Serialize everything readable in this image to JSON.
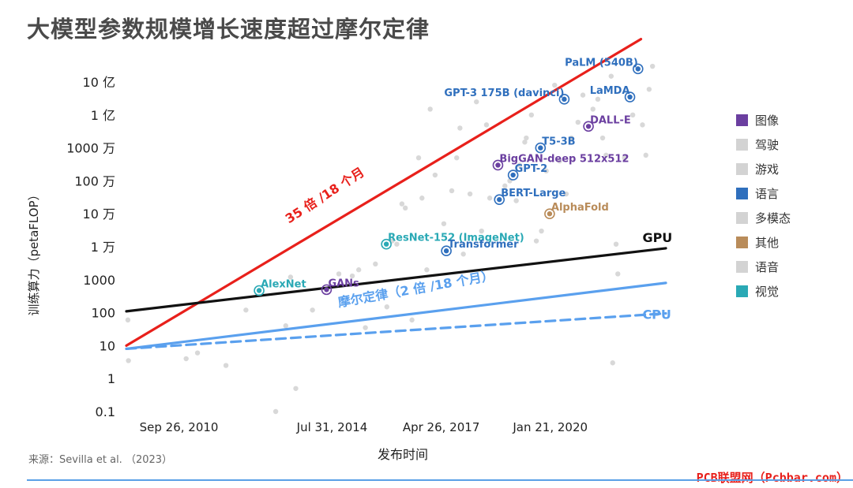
{
  "title": "大模型参数规模增长速度超过摩尔定律",
  "source": "来源：Sevilla et al. （2023）",
  "watermark": "PCB联盟网（Pcbbar.com）",
  "chart_data": {
    "type": "scatter",
    "y_scale": "log10",
    "xlabel": "发布时间",
    "ylabel": "训练算力（petaFLOP）",
    "x_range": [
      "2009-06-01",
      "2022-12-15"
    ],
    "ylim": [
      0.1,
      100000000000
    ],
    "x_ticks": [
      {
        "date": "2010-09-26",
        "label": "Sep 26, 2010"
      },
      {
        "date": "2014-07-31",
        "label": "Jul 31, 2014"
      },
      {
        "date": "2017-04-26",
        "label": "Apr 26, 2017"
      },
      {
        "date": "2020-01-21",
        "label": "Jan 21, 2020"
      }
    ],
    "y_ticks": [
      {
        "value": 0.1,
        "label": "0.1"
      },
      {
        "value": 1,
        "label": "1"
      },
      {
        "value": 10,
        "label": "10"
      },
      {
        "value": 100,
        "label": "100"
      },
      {
        "value": 1000,
        "label": "1000"
      },
      {
        "value": 10000,
        "label": "1 万"
      },
      {
        "value": 100000,
        "label": "10 万"
      },
      {
        "value": 1000000,
        "label": "100 万"
      },
      {
        "value": 10000000,
        "label": "1000 万"
      },
      {
        "value": 100000000,
        "label": "1 亿"
      },
      {
        "value": 1000000000,
        "label": "10 亿"
      }
    ],
    "legend": [
      {
        "name": "图像",
        "color": "#6b3fa0"
      },
      {
        "name": "驾驶",
        "color": "#d3d3d3"
      },
      {
        "name": "游戏",
        "color": "#d3d3d3"
      },
      {
        "name": "语言",
        "color": "#2f6fbd"
      },
      {
        "name": "多模态",
        "color": "#d3d3d3"
      },
      {
        "name": "其他",
        "color": "#b98c5a"
      },
      {
        "name": "语音",
        "color": "#d3d3d3"
      },
      {
        "name": "视觉",
        "color": "#2aa9b5"
      }
    ],
    "legend_position": "right",
    "trend_lines": [
      {
        "name": "35 倍 /18 个月",
        "color": "#e8201b",
        "style": "solid",
        "from": {
          "date": "2009-06-01",
          "value": 10
        },
        "to": {
          "date": "2022-05-01",
          "value": 20000000000
        }
      },
      {
        "name": "GPU",
        "color": "#111111",
        "style": "solid",
        "from": {
          "date": "2009-06-01",
          "value": 110
        },
        "to": {
          "date": "2022-12-15",
          "value": 9000
        }
      },
      {
        "name": "摩尔定律（2 倍 /18 个月）",
        "color": "#5aa0ee",
        "style": "solid",
        "from": {
          "date": "2009-06-01",
          "value": 8
        },
        "to": {
          "date": "2022-12-15",
          "value": 800
        }
      },
      {
        "name": "CPU",
        "color": "#5aa0ee",
        "style": "dashed",
        "from": {
          "date": "2009-06-01",
          "value": 8
        },
        "to": {
          "date": "2022-12-15",
          "value": 95
        }
      }
    ],
    "line_labels": [
      {
        "text": "35 倍 /18 个月",
        "color": "#e8201b",
        "date": "2013-07-01",
        "value": 50000,
        "rotate": -33
      },
      {
        "text": "GPU",
        "color": "#111111",
        "date": "2022-05-15",
        "value": 14000,
        "rotate": 0
      },
      {
        "text": "摩尔定律（2 倍 /18 个月）",
        "color": "#5aa0ee",
        "date": "2014-10-01",
        "value": 150,
        "rotate": -10
      },
      {
        "text": "CPU",
        "color": "#5aa0ee",
        "date": "2022-05-15",
        "value": 65,
        "rotate": 0
      }
    ],
    "highlights": [
      {
        "name": "AlexNet",
        "date": "2012-09-30",
        "value": 470,
        "category": "视觉",
        "color": "#2aa9b5"
      },
      {
        "name": "GANs",
        "date": "2014-06-10",
        "value": 500,
        "category": "图像",
        "color": "#6b3fa0"
      },
      {
        "name": "ResNet-152 (ImageNet)",
        "date": "2015-12-10",
        "value": 12000,
        "category": "视觉",
        "color": "#2aa9b5"
      },
      {
        "name": "Transformer",
        "date": "2017-06-12",
        "value": 7500,
        "category": "语言",
        "color": "#2f6fbd"
      },
      {
        "name": "BERT-Large",
        "date": "2018-10-11",
        "value": 270000,
        "category": "语言",
        "color": "#2f6fbd"
      },
      {
        "name": "BigGAN-deep 512x512",
        "date": "2018-09-28",
        "value": 3000000,
        "category": "图像",
        "color": "#6b3fa0"
      },
      {
        "name": "GPT-2",
        "date": "2019-02-14",
        "value": 1500000,
        "category": "语言",
        "color": "#2f6fbd"
      },
      {
        "name": "T5-3B",
        "date": "2019-10-23",
        "value": 10000000,
        "category": "语言",
        "color": "#2f6fbd"
      },
      {
        "name": "AlphaFold",
        "date": "2020-01-15",
        "value": 100000,
        "category": "其他",
        "color": "#b98c5a"
      },
      {
        "name": "GPT-3 175B (davinci)",
        "date": "2020-05-28",
        "value": 300000000,
        "category": "语言",
        "color": "#2f6fbd"
      },
      {
        "name": "DALL-E",
        "date": "2021-01-05",
        "value": 45000000,
        "category": "图像",
        "color": "#6b3fa0"
      },
      {
        "name": "LaMDA",
        "date": "2022-01-20",
        "value": 350000000,
        "category": "语言",
        "color": "#2f6fbd"
      },
      {
        "name": "PaLM (540B)",
        "date": "2022-04-04",
        "value": 2500000000,
        "category": "语言",
        "color": "#2f6fbd"
      }
    ],
    "background_points": [
      {
        "date": "2009-06-15",
        "value": 60
      },
      {
        "date": "2009-06-20",
        "value": 3.5
      },
      {
        "date": "2010-12-01",
        "value": 4
      },
      {
        "date": "2011-03-15",
        "value": 6
      },
      {
        "date": "2011-12-01",
        "value": 2.5
      },
      {
        "date": "2012-06-01",
        "value": 120
      },
      {
        "date": "2013-03-01",
        "value": 0.1
      },
      {
        "date": "2013-06-01",
        "value": 40
      },
      {
        "date": "2013-07-15",
        "value": 1200
      },
      {
        "date": "2013-09-01",
        "value": 0.5
      },
      {
        "date": "2014-02-01",
        "value": 120
      },
      {
        "date": "2014-10-01",
        "value": 1500
      },
      {
        "date": "2015-02-01",
        "value": 1300
      },
      {
        "date": "2015-04-01",
        "value": 2000
      },
      {
        "date": "2015-06-01",
        "value": 35
      },
      {
        "date": "2015-09-01",
        "value": 3000
      },
      {
        "date": "2015-12-15",
        "value": 150
      },
      {
        "date": "2016-02-01",
        "value": 15000
      },
      {
        "date": "2016-03-15",
        "value": 12000
      },
      {
        "date": "2016-05-01",
        "value": 200000
      },
      {
        "date": "2016-06-01",
        "value": 150000
      },
      {
        "date": "2016-08-01",
        "value": 60
      },
      {
        "date": "2016-10-01",
        "value": 5000000
      },
      {
        "date": "2016-11-01",
        "value": 300000
      },
      {
        "date": "2016-12-15",
        "value": 2000
      },
      {
        "date": "2017-01-15",
        "value": 150000000
      },
      {
        "date": "2017-03-01",
        "value": 1500000
      },
      {
        "date": "2017-05-20",
        "value": 50000
      },
      {
        "date": "2017-08-01",
        "value": 500000
      },
      {
        "date": "2017-09-15",
        "value": 5000000
      },
      {
        "date": "2017-10-15",
        "value": 40000000
      },
      {
        "date": "2017-11-15",
        "value": 6000
      },
      {
        "date": "2018-01-15",
        "value": 400000
      },
      {
        "date": "2018-03-15",
        "value": 250000000
      },
      {
        "date": "2018-05-01",
        "value": 30000
      },
      {
        "date": "2018-06-15",
        "value": 50000000
      },
      {
        "date": "2018-07-15",
        "value": 300000
      },
      {
        "date": "2018-12-01",
        "value": 700000
      },
      {
        "date": "2019-01-15",
        "value": 1000000
      },
      {
        "date": "2019-03-15",
        "value": 250000
      },
      {
        "date": "2019-04-15",
        "value": 3000000
      },
      {
        "date": "2019-06-01",
        "value": 15000000
      },
      {
        "date": "2019-06-15",
        "value": 20000000
      },
      {
        "date": "2019-08-01",
        "value": 100000000
      },
      {
        "date": "2019-09-15",
        "value": 15000
      },
      {
        "date": "2019-11-01",
        "value": 30000
      },
      {
        "date": "2019-12-15",
        "value": 2000000
      },
      {
        "date": "2020-03-01",
        "value": 800000000
      },
      {
        "date": "2020-04-15",
        "value": 4000000
      },
      {
        "date": "2020-06-15",
        "value": 400000
      },
      {
        "date": "2020-08-01",
        "value": 20000000
      },
      {
        "date": "2020-10-01",
        "value": 60000000
      },
      {
        "date": "2020-11-15",
        "value": 400000000
      },
      {
        "date": "2021-02-15",
        "value": 150000000
      },
      {
        "date": "2021-04-01",
        "value": 300000000
      },
      {
        "date": "2021-05-15",
        "value": 20000000
      },
      {
        "date": "2021-06-15",
        "value": 6000000
      },
      {
        "date": "2021-08-01",
        "value": 1500000000
      },
      {
        "date": "2021-08-15",
        "value": 3
      },
      {
        "date": "2021-09-15",
        "value": 12000
      },
      {
        "date": "2021-10-01",
        "value": 1500
      },
      {
        "date": "2021-12-01",
        "value": 5000000
      },
      {
        "date": "2022-02-15",
        "value": 100000000
      },
      {
        "date": "2022-05-15",
        "value": 50000000
      },
      {
        "date": "2022-06-15",
        "value": 6000000
      },
      {
        "date": "2022-07-15",
        "value": 600000000
      },
      {
        "date": "2022-08-15",
        "value": 3000000000
      }
    ]
  }
}
